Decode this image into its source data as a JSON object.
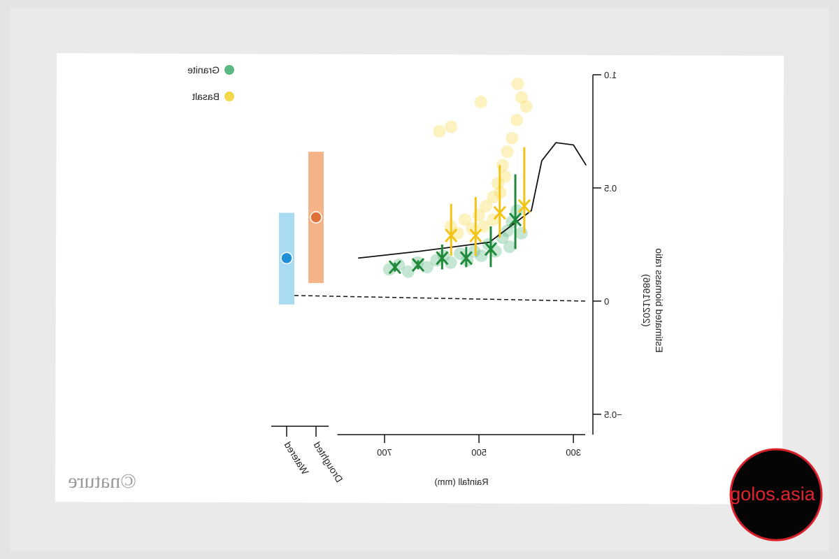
{
  "chart_data": {
    "type": "scatter",
    "ylabel": [
      "Estimated biomass ratio",
      "(2021/1986)"
    ],
    "xlabel": "Rainfall (mm)",
    "credit": "©nature",
    "watermark": "golos.asia",
    "xlim": [
      275,
      800
    ],
    "xticks": [
      300,
      500,
      700
    ],
    "ylim": [
      -0.59,
      1.0
    ],
    "yticks": [
      {
        "value": 1.0,
        "label": "1.0"
      },
      0.5,
      0,
      {
        "value": -0.5,
        "label": "−0.5"
      }
    ],
    "series": [
      {
        "name": "Granite",
        "color": "#5cb883",
        "x": [
          690,
          670,
          650,
          630,
          610,
          590,
          575,
          560,
          540,
          525,
          510,
          495,
          480,
          465,
          450,
          440,
          430,
          420,
          410,
          435
        ],
        "values": [
          0.14,
          0.16,
          0.13,
          0.17,
          0.15,
          0.18,
          0.2,
          0.17,
          0.21,
          0.18,
          0.22,
          0.2,
          0.25,
          0.22,
          0.28,
          0.31,
          0.35,
          0.4,
          0.3,
          0.24
        ]
      },
      {
        "name": "Basalt",
        "color": "#f3d94a",
        "x": [
          560,
          545,
          530,
          515,
          500,
          485,
          470,
          460,
          450,
          440,
          430,
          420,
          410,
          400,
          418,
          496,
          445,
          455,
          584,
          559,
          490,
          470
        ],
        "values": [
          0.33,
          0.3,
          0.36,
          0.32,
          0.38,
          0.42,
          0.46,
          0.52,
          0.6,
          0.66,
          0.72,
          0.8,
          0.9,
          0.86,
          0.96,
          0.88,
          0.55,
          0.48,
          0.75,
          0.77,
          0.33,
          0.36
        ]
      }
    ],
    "means": [
      {
        "color": "#1e8a3a",
        "x": [
          423,
          475,
          527,
          578,
          629,
          678
        ],
        "values": [
          0.36,
          0.23,
          0.19,
          0.19,
          0.16,
          0.15
        ],
        "lower": [
          0.23,
          0.15,
          0.15,
          0.14,
          0.14,
          0.13
        ],
        "upper": [
          0.56,
          0.33,
          0.24,
          0.25,
          0.18,
          0.17
        ]
      },
      {
        "color": "#f2c418",
        "x": [
          404,
          456,
          507,
          559
        ],
        "values": [
          0.42,
          0.39,
          0.29,
          0.29
        ],
        "lower": [
          0.3,
          0.28,
          0.2,
          0.2
        ],
        "upper": [
          0.68,
          0.6,
          0.46,
          0.43
        ]
      }
    ],
    "line": {
      "color": "#111111",
      "x": [
        756,
        626,
        478,
        389,
        367,
        337,
        300,
        273
      ],
      "values": [
        0.19,
        0.22,
        0.26,
        0.4,
        0.62,
        0.7,
        0.69,
        0.6
      ]
    },
    "categories": [
      "Droughted",
      "Watered"
    ],
    "category_values": [
      0.37,
      0.19
    ],
    "category_lower": [
      0.08,
      -0.015
    ],
    "category_upper": [
      0.66,
      0.39
    ],
    "category_colors": [
      "#e0713a",
      "#1f8fd6"
    ],
    "category_band_colors": [
      "#f5b488",
      "#a9dcf2"
    ]
  }
}
